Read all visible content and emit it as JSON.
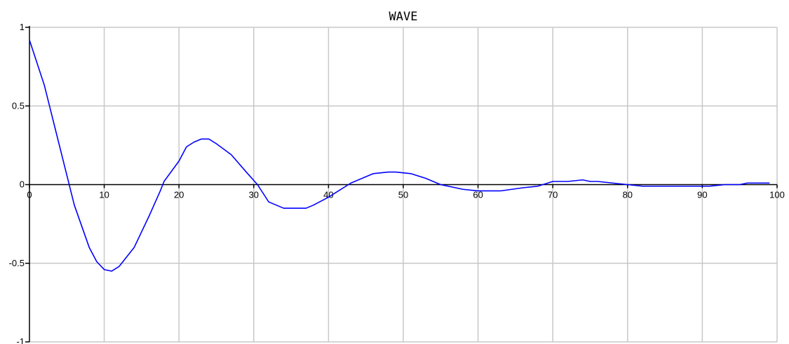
{
  "chart_data": {
    "type": "line",
    "title": "WAVE",
    "xlabel": "",
    "ylabel": "",
    "xlim": [
      0,
      100
    ],
    "ylim": [
      -1,
      1
    ],
    "x_ticks": [
      0,
      10,
      20,
      30,
      40,
      50,
      60,
      70,
      80,
      90,
      100
    ],
    "x_tick_labels": [
      "0",
      "10",
      "20",
      "30",
      "40",
      "50",
      "60",
      "70",
      "80",
      "90",
      "100"
    ],
    "y_ticks": [
      1,
      0.5,
      0,
      -0.5,
      -1
    ],
    "y_tick_labels": [
      "1",
      "0.5",
      "0",
      "-0.5",
      "-1"
    ],
    "grid": true,
    "grid_color": "#c8c8c8",
    "axis_color": "#000000",
    "series": [
      {
        "color": "#0000ff",
        "x": [
          0,
          2,
          4,
          6,
          8,
          9,
          10,
          11,
          12,
          14,
          16,
          17.5,
          18,
          20,
          21,
          22,
          23,
          24,
          25,
          27,
          29,
          30.5,
          32,
          34,
          35,
          37,
          38,
          40,
          41,
          43,
          45,
          46,
          48,
          49,
          51,
          53,
          55,
          57,
          58,
          60,
          63,
          66,
          68,
          70,
          72,
          74,
          75,
          76,
          78,
          80,
          82,
          85,
          88,
          91,
          93,
          95,
          96,
          99
        ],
        "y": [
          0.92,
          0.63,
          0.25,
          -0.13,
          -0.4,
          -0.49,
          -0.54,
          -0.55,
          -0.52,
          -0.4,
          -0.2,
          -0.04,
          0.02,
          0.15,
          0.24,
          0.27,
          0.29,
          0.29,
          0.26,
          0.19,
          0.08,
          0.0,
          -0.11,
          -0.15,
          -0.15,
          -0.15,
          -0.13,
          -0.08,
          -0.05,
          0.01,
          0.05,
          0.07,
          0.08,
          0.08,
          0.07,
          0.04,
          0.0,
          -0.02,
          -0.03,
          -0.04,
          -0.04,
          -0.02,
          -0.01,
          0.02,
          0.02,
          0.03,
          0.02,
          0.02,
          0.01,
          0.0,
          -0.01,
          -0.01,
          -0.01,
          -0.01,
          0.0,
          0.0,
          0.01,
          0.01
        ]
      }
    ]
  }
}
